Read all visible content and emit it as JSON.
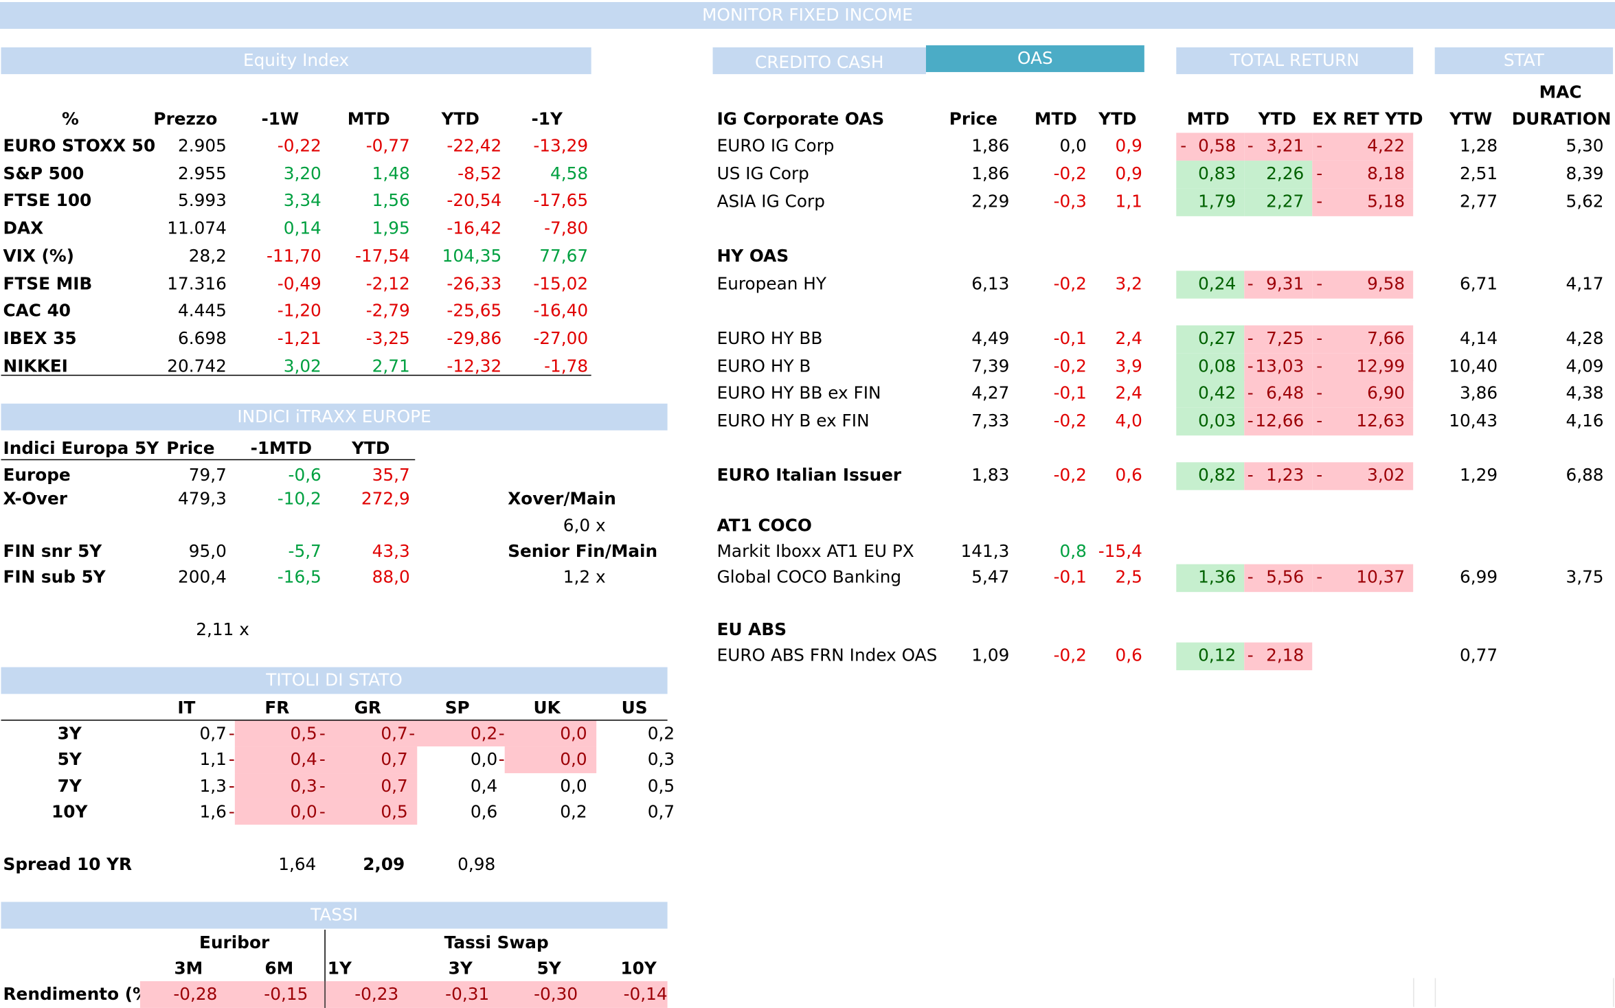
{
  "title": "MONITOR FIXED INCOME",
  "equity": {
    "header": "Equity Index",
    "cols": [
      "%",
      "Prezzo",
      "-1W",
      "MTD",
      "YTD",
      "-1Y"
    ],
    "rows": [
      [
        "EURO STOXX 50",
        "2.905",
        "-0,22",
        "-0,77",
        "-22,42",
        "-13,29"
      ],
      [
        "S&P 500",
        "2.955",
        "3,20",
        "1,48",
        "-8,52",
        "4,58"
      ],
      [
        "FTSE 100",
        "5.993",
        "3,34",
        "1,56",
        "-20,54",
        "-17,65"
      ],
      [
        "DAX",
        "11.074",
        "0,14",
        "1,95",
        "-16,42",
        "-7,80"
      ],
      [
        "VIX (%)",
        "28,2",
        "-11,70",
        "-17,54",
        "104,35",
        "77,67"
      ],
      [
        "FTSE MIB",
        "17.316",
        "-0,49",
        "-2,12",
        "-26,33",
        "-15,02"
      ],
      [
        "CAC 40",
        "4.445",
        "-1,20",
        "-2,79",
        "-25,65",
        "-16,40"
      ],
      [
        "IBEX 35",
        "6.698",
        "-1,21",
        "-3,25",
        "-29,86",
        "-27,00"
      ],
      [
        "NIKKEI",
        "20.742",
        "3,02",
        "2,71",
        "-12,32",
        "-1,78"
      ]
    ]
  },
  "itraxx": {
    "header": "INDICI iTRAXX EUROPE",
    "cols": [
      "Indici Europa 5Y",
      "Price",
      "-1MTD",
      "YTD"
    ],
    "rows": [
      [
        "Europe",
        "79,7",
        "-0,6",
        "35,7"
      ],
      [
        "X-Over",
        "479,3",
        "-10,2",
        "272,9"
      ],
      [
        "FIN snr 5Y",
        "95,0",
        "-5,7",
        "43,3"
      ],
      [
        "FIN sub 5Y",
        "200,4",
        "-16,5",
        "88,0"
      ]
    ],
    "xover_main_label": "Xover/Main",
    "xover_main_value": "6,0 x",
    "senior_fin_label": "Senior Fin/Main",
    "senior_fin_value": "1,2 x",
    "ratio_value": "2,11 x"
  },
  "stato": {
    "header": "TITOLI DI STATO",
    "cols": [
      "IT",
      "FR",
      "GR",
      "SP",
      "UK",
      "US"
    ],
    "rows": [
      {
        "label": "3Y",
        "IT": "0,7",
        "FR": "0,5",
        "GR": "0,7",
        "SP": "0,2",
        "UK": "0,0",
        "US": "0,2"
      },
      {
        "label": "5Y",
        "IT": "1,1",
        "FR": "0,4",
        "GR": "0,7",
        "SP": "0,0",
        "UK": "0,0",
        "US": "0,3"
      },
      {
        "label": "7Y",
        "IT": "1,3",
        "FR": "0,3",
        "GR": "0,7",
        "SP": "0,4",
        "UK": "0,0",
        "US": "0,5"
      },
      {
        "label": "10Y",
        "IT": "1,6",
        "FR": "0,0",
        "GR": "0,5",
        "SP": "0,6",
        "UK": "0,2",
        "US": "0,7"
      }
    ],
    "dash": "-",
    "spread_label": "Spread 10 YR",
    "spread_values": [
      "1,64",
      "2,09",
      "0,98"
    ]
  },
  "tassi": {
    "header": "TASSI",
    "euribor_label": "Euribor",
    "swap_label": "Tassi Swap",
    "cols": [
      "3M",
      "6M",
      "1Y",
      "3Y",
      "5Y",
      "10Y"
    ],
    "row_label": "Rendimento (%)",
    "values": [
      "-0,28",
      "-0,15",
      "-0,23",
      "-0,31",
      "-0,30",
      "-0,14"
    ]
  },
  "credito": {
    "header_cash": "CREDITO CASH",
    "header_oas": "OAS",
    "header_tr": "TOTAL RETURN",
    "header_stat": "STAT",
    "mac_label": "MAC",
    "cols": [
      "IG Corporate OAS",
      "Price",
      "MTD",
      "YTD",
      "MTD",
      "YTD",
      "EX RET YTD",
      "YTW",
      "DURATION"
    ],
    "sections": [
      {
        "title": "",
        "rows": [
          [
            "EURO IG Corp",
            "1,86",
            "0,0",
            "0,9",
            "0,58",
            "3,21",
            "4,22",
            "1,28",
            "5,30"
          ],
          [
            "US IG Corp",
            "1,86",
            "-0,2",
            "0,9",
            "0,83",
            "2,26",
            "8,18",
            "2,51",
            "8,39"
          ],
          [
            "ASIA IG Corp",
            "2,29",
            "-0,3",
            "1,1",
            "1,79",
            "2,27",
            "5,18",
            "2,77",
            "5,62"
          ]
        ]
      },
      {
        "title": "HY  OAS",
        "rows": [
          [
            "European HY",
            "6,13",
            "-0,2",
            "3,2",
            "0,24",
            "9,31",
            "9,58",
            "6,71",
            "4,17"
          ]
        ]
      },
      {
        "title": "",
        "rows": [
          [
            "EURO HY BB",
            "4,49",
            "-0,1",
            "2,4",
            "0,27",
            "7,25",
            "7,66",
            "4,14",
            "4,28"
          ],
          [
            "EURO HY B",
            "7,39",
            "-0,2",
            "3,9",
            "0,08",
            "13,03",
            "12,99",
            "10,40",
            "4,09"
          ],
          [
            "EURO HY BB ex FIN",
            "4,27",
            "-0,1",
            "2,4",
            "0,42",
            "6,48",
            "6,90",
            "3,86",
            "4,38"
          ],
          [
            "EURO HY B ex FIN",
            "7,33",
            "-0,2",
            "4,0",
            "0,03",
            "12,66",
            "12,63",
            "10,43",
            "4,16"
          ]
        ]
      },
      {
        "title": "",
        "rows": [
          [
            "EURO Italian Issuer",
            "1,83",
            "-0,2",
            "0,6",
            "0,82",
            "1,23",
            "3,02",
            "1,29",
            "6,88"
          ]
        ]
      },
      {
        "title": "AT1 COCO",
        "rows": [
          [
            "Markit Iboxx AT1 EU PX",
            "141,3",
            "0,8",
            "-15,4",
            "",
            "",
            "",
            "",
            ""
          ],
          [
            "Global COCO Banking",
            "5,47",
            "-0,1",
            "2,5",
            "1,36",
            "5,56",
            "10,37",
            "6,99",
            "3,75"
          ]
        ]
      },
      {
        "title": "EU ABS",
        "rows": [
          [
            "EURO ABS FRN Index OAS",
            "1,09",
            "-0,2",
            "0,6",
            "0,12",
            "2,18",
            "",
            "0,77",
            ""
          ]
        ]
      }
    ]
  },
  "colors": {
    "header_bg": "#c5d9f1",
    "oas_bg": "#4bacc6",
    "pos": "#00a040",
    "neg": "#e00000",
    "pink": "#ffc7ce",
    "green_fill": "#c6efce"
  }
}
